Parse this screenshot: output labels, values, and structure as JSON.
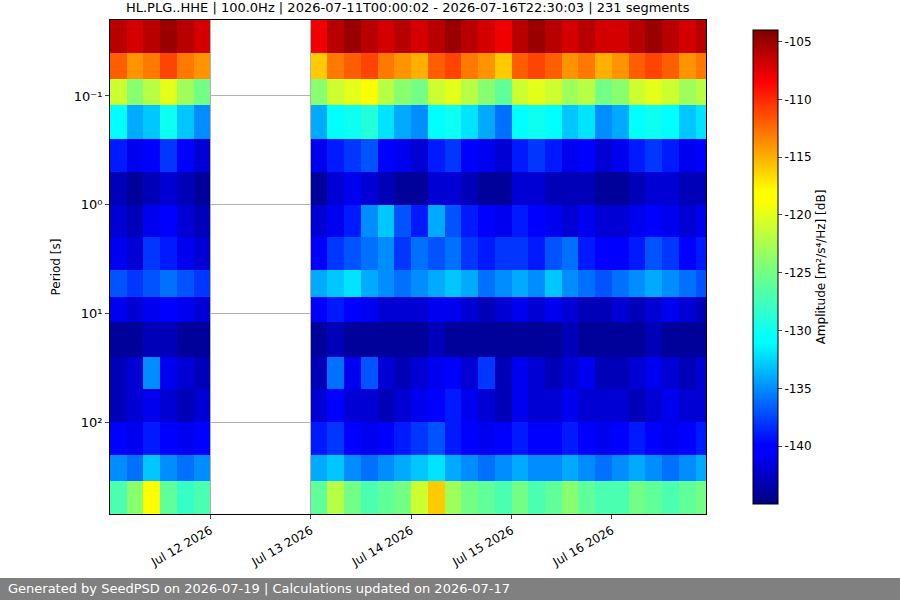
{
  "chart_data": {
    "type": "heatmap",
    "title": "HL.PLG..HHE | 100.0Hz | 2026-07-11T00:00:02 - 2026-07-16T22:30:03 | 231 segments",
    "ylabel": "Period [s]",
    "annotations": [
      "Generated by SeedPSD on 2026-07-19 | Calculations updated on 2026-07-17"
    ],
    "log": "y",
    "grid": true,
    "xlim": [
      "2026-07-11 00:00:02",
      "2026-07-16 22:30:03"
    ],
    "xticks": [
      {
        "value": "2026-07-12",
        "label": "Jul 12 2026"
      },
      {
        "value": "2026-07-13",
        "label": "Jul 13 2026"
      },
      {
        "value": "2026-07-14",
        "label": "Jul 14 2026"
      },
      {
        "value": "2026-07-15",
        "label": "Jul 15 2026"
      },
      {
        "value": "2026-07-16",
        "label": "Jul 16 2026"
      }
    ],
    "ylim": [
      700,
      0.02
    ],
    "yticks": [
      {
        "value": 0.1,
        "label": "10⁻¹"
      },
      {
        "value": 1,
        "label": "10⁰"
      },
      {
        "value": 10,
        "label": "10¹"
      },
      {
        "value": 100,
        "label": "10²"
      }
    ],
    "x_edges": [
      "2026-07-11 00:00",
      "2026-07-11 04:00",
      "2026-07-11 08:00",
      "2026-07-11 12:00",
      "2026-07-11 16:00",
      "2026-07-11 20:00",
      "2026-07-12 00:00",
      "2026-07-12 04:00",
      "2026-07-12 08:00",
      "2026-07-12 12:00",
      "2026-07-12 16:00",
      "2026-07-12 20:00",
      "2026-07-13 00:00",
      "2026-07-13 04:00",
      "2026-07-13 08:00",
      "2026-07-13 12:00",
      "2026-07-13 16:00",
      "2026-07-13 20:00",
      "2026-07-14 00:00",
      "2026-07-14 04:00",
      "2026-07-14 08:00",
      "2026-07-14 12:00",
      "2026-07-14 16:00",
      "2026-07-14 20:00",
      "2026-07-15 00:00",
      "2026-07-15 04:00",
      "2026-07-15 08:00",
      "2026-07-15 12:00",
      "2026-07-15 16:00",
      "2026-07-15 20:00",
      "2026-07-16 00:00",
      "2026-07-16 04:00",
      "2026-07-16 08:00",
      "2026-07-16 12:00",
      "2026-07-16 16:00",
      "2026-07-16 20:00",
      "2026-07-16 22:30"
    ],
    "y_edges": [
      0.02,
      0.04,
      0.07,
      0.12,
      0.25,
      0.5,
      1,
      2,
      4,
      7,
      12,
      25,
      50,
      100,
      200,
      350,
      700
    ],
    "cells": [
      [
        -106,
        -107,
        -106,
        -105,
        -106,
        -107,
        null,
        null,
        null,
        null,
        null,
        null,
        -108,
        -106,
        -105,
        -106,
        -107,
        -106,
        -107,
        -106,
        -105,
        -106,
        -107,
        -108,
        -106,
        -105,
        -106,
        -107,
        -106,
        -107,
        -107,
        -106,
        -105,
        -106,
        -107,
        -106
      ],
      [
        -112,
        -114,
        -113,
        -111,
        -113,
        -114,
        null,
        null,
        null,
        null,
        null,
        null,
        -116,
        -113,
        -112,
        -111,
        -113,
        -114,
        -115,
        -112,
        -111,
        -113,
        -114,
        -116,
        -112,
        -111,
        -112,
        -114,
        -113,
        -115,
        -114,
        -112,
        -111,
        -112,
        -114,
        -113
      ],
      [
        -121,
        -124,
        -122,
        -120,
        -123,
        -125,
        null,
        null,
        null,
        null,
        null,
        null,
        -124,
        -121,
        -120,
        -119,
        -122,
        -124,
        -125,
        -121,
        -120,
        -122,
        -124,
        -126,
        -121,
        -120,
        -121,
        -123,
        -122,
        -125,
        -124,
        -121,
        -120,
        -121,
        -123,
        -122
      ],
      [
        -131,
        -134,
        -133,
        -130,
        -133,
        -135,
        null,
        null,
        null,
        null,
        null,
        null,
        -134,
        -131,
        -130,
        -129,
        -132,
        -134,
        -135,
        -131,
        -130,
        -132,
        -134,
        -136,
        -131,
        -130,
        -131,
        -133,
        -132,
        -135,
        -134,
        -131,
        -130,
        -131,
        -133,
        -132
      ],
      [
        -139,
        -141,
        -140,
        -138,
        -140,
        -142,
        null,
        null,
        null,
        null,
        null,
        null,
        -141,
        -139,
        -138,
        -137,
        -140,
        -141,
        -142,
        -139,
        -138,
        -140,
        -141,
        -142,
        -139,
        -138,
        -139,
        -141,
        -140,
        -142,
        -141,
        -139,
        -138,
        -139,
        -141,
        -140
      ],
      [
        -143,
        -144,
        -143,
        -142,
        -143,
        -144,
        null,
        null,
        null,
        null,
        null,
        null,
        -144,
        -142,
        -141,
        -142,
        -143,
        -144,
        -144,
        -142,
        -142,
        -143,
        -144,
        -144,
        -142,
        -142,
        -143,
        -143,
        -143,
        -144,
        -144,
        -143,
        -142,
        -142,
        -143,
        -143
      ],
      [
        -142,
        -143,
        -141,
        -140,
        -142,
        -143,
        null,
        null,
        null,
        null,
        null,
        null,
        -142,
        -141,
        -139,
        -135,
        -133,
        -137,
        -139,
        -134,
        -137,
        -139,
        -140,
        -141,
        -139,
        -140,
        -141,
        -142,
        -141,
        -142,
        -142,
        -141,
        -140,
        -141,
        -142,
        -141
      ],
      [
        -141,
        -142,
        -138,
        -139,
        -141,
        -142,
        null,
        null,
        null,
        null,
        null,
        null,
        -140,
        -138,
        -137,
        -136,
        -135,
        -138,
        -136,
        -137,
        -136,
        -138,
        -139,
        -138,
        -138,
        -139,
        -137,
        -136,
        -139,
        -140,
        -140,
        -139,
        -137,
        -138,
        -140,
        -139
      ],
      [
        -137,
        -138,
        -137,
        -136,
        -137,
        -138,
        null,
        null,
        null,
        null,
        null,
        null,
        -134,
        -133,
        -132,
        -134,
        -135,
        -136,
        -135,
        -134,
        -133,
        -134,
        -136,
        -135,
        -134,
        -135,
        -133,
        -135,
        -136,
        -137,
        -136,
        -135,
        -134,
        -135,
        -136,
        -137
      ],
      [
        -141,
        -142,
        -141,
        -140,
        -141,
        -142,
        null,
        null,
        null,
        null,
        null,
        null,
        -140,
        -139,
        -140,
        -141,
        -142,
        -142,
        -142,
        -141,
        -141,
        -142,
        -143,
        -142,
        -141,
        -142,
        -141,
        -142,
        -143,
        -143,
        -142,
        -143,
        -142,
        -141,
        -142,
        -143
      ],
      [
        -144,
        -144,
        -143,
        -143,
        -144,
        -144,
        null,
        null,
        null,
        null,
        null,
        null,
        -144,
        -143,
        -144,
        -144,
        -144,
        -144,
        -144,
        -143,
        -144,
        -144,
        -144,
        -144,
        -144,
        -144,
        -144,
        -143,
        -144,
        -144,
        -144,
        -144,
        -143,
        -144,
        -144,
        -144
      ],
      [
        -143,
        -142,
        -135,
        -141,
        -142,
        -143,
        null,
        null,
        null,
        null,
        null,
        null,
        -143,
        -136,
        -141,
        -137,
        -142,
        -143,
        -142,
        -141,
        -140,
        -142,
        -138,
        -143,
        -141,
        -142,
        -143,
        -142,
        -141,
        -143,
        -143,
        -142,
        -141,
        -142,
        -143,
        -142
      ],
      [
        -143,
        -142,
        -141,
        -142,
        -143,
        -142,
        null,
        null,
        null,
        null,
        null,
        null,
        -142,
        -140,
        -142,
        -142,
        -143,
        -142,
        -141,
        -140,
        -139,
        -141,
        -142,
        -143,
        -141,
        -142,
        -142,
        -141,
        -142,
        -142,
        -142,
        -143,
        -142,
        -141,
        -142,
        -142
      ],
      [
        -140,
        -141,
        -139,
        -140,
        -141,
        -140,
        null,
        null,
        null,
        null,
        null,
        null,
        -139,
        -138,
        -140,
        -141,
        -140,
        -139,
        -138,
        -137,
        -139,
        -140,
        -141,
        -140,
        -139,
        -140,
        -140,
        -139,
        -140,
        -141,
        -140,
        -139,
        -140,
        -141,
        -140,
        -139
      ],
      [
        -135,
        -136,
        -133,
        -135,
        -136,
        -135,
        null,
        null,
        null,
        null,
        null,
        null,
        -134,
        -133,
        -135,
        -136,
        -135,
        -134,
        -133,
        -132,
        -134,
        -135,
        -136,
        -135,
        -134,
        -135,
        -135,
        -134,
        -135,
        -136,
        -135,
        -134,
        -135,
        -136,
        -135,
        -134
      ],
      [
        -127,
        -124,
        -118,
        -126,
        -128,
        -127,
        null,
        null,
        null,
        null,
        null,
        null,
        -126,
        -122,
        -125,
        -127,
        -126,
        -125,
        -121,
        -116,
        -123,
        -125,
        -126,
        -127,
        -125,
        -127,
        -126,
        -124,
        -126,
        -127,
        -127,
        -125,
        -126,
        -127,
        -126,
        -125
      ]
    ],
    "colorbar_label": "Amplitude [m²/s⁴/Hz] [dB]",
    "colorbar_range": [
      -145,
      -104
    ],
    "colorbar_ticks": [
      -140,
      -135,
      -130,
      -125,
      -120,
      -115,
      -110,
      -105
    ]
  }
}
